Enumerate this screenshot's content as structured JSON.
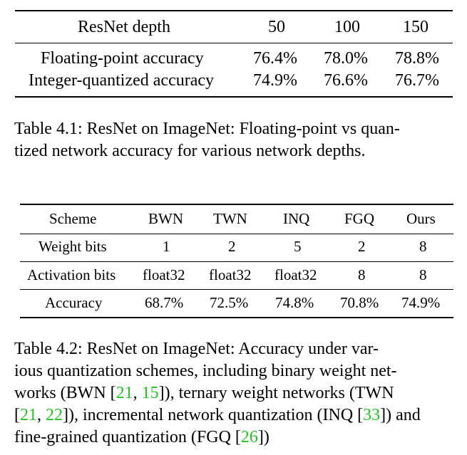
{
  "table1": {
    "headers": [
      "ResNet depth",
      "50",
      "100",
      "150"
    ],
    "rows": [
      [
        "Floating-point accuracy",
        "76.4%",
        "78.0%",
        "78.8%"
      ],
      [
        "Integer-quantized accuracy",
        "74.9%",
        "76.6%",
        "76.7%"
      ]
    ],
    "caption_lines": [
      "Table 4.1: ResNet on ImageNet: Floating-point vs quan-",
      "tized network accuracy for various network depths."
    ]
  },
  "table2": {
    "headers": [
      "Scheme",
      "BWN",
      "TWN",
      "INQ",
      "FGQ",
      "Ours"
    ],
    "rows": [
      [
        "Weight bits",
        "1",
        "2",
        "5",
        "2",
        "8"
      ],
      [
        "Activation bits",
        "float32",
        "float32",
        "float32",
        "8",
        "8"
      ],
      [
        "Accuracy",
        "68.7%",
        "72.5%",
        "74.8%",
        "70.8%",
        "74.9%"
      ]
    ],
    "caption": {
      "l1": "Table 4.2: ResNet on ImageNet: Accuracy under var-",
      "l2": "ious quantization schemes, including binary weight net-",
      "l3a": "works (BWN [",
      "c21a": "21",
      "sep1": ", ",
      "c15": "15",
      "l3b": "]), ternary weight networks (TWN",
      "l4a": "[",
      "c21b": "21",
      "sep2": ", ",
      "c22": "22",
      "l4b": "]), incremental network quantization (INQ [",
      "c33": "33",
      "l4c": "]) and",
      "l5a": "fine-grained quantization (FGQ [",
      "c26": "26",
      "l5b": "])"
    }
  }
}
